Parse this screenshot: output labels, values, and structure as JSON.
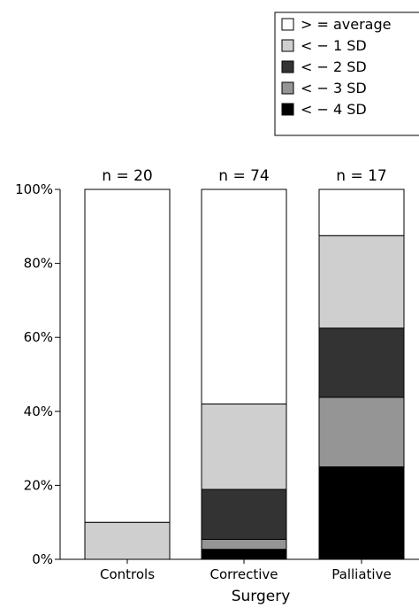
{
  "chart_data": {
    "type": "bar",
    "stacked": true,
    "percent": true,
    "categories": [
      "Controls",
      "Corrective",
      "Palliative"
    ],
    "counts": [
      "n = 20",
      "n = 74",
      "n = 17"
    ],
    "xlabel": "Surgery",
    "ylabel": "",
    "ylim": [
      0,
      100
    ],
    "yticks": [
      "0%",
      "20%",
      "40%",
      "60%",
      "80%",
      "100%"
    ],
    "series": [
      {
        "name": "< − 4 SD",
        "color": "#000000",
        "values": [
          0,
          2.7,
          25.0
        ]
      },
      {
        "name": "< − 3 SD",
        "color": "#959595",
        "values": [
          0,
          2.7,
          18.8
        ]
      },
      {
        "name": "< − 2 SD",
        "color": "#333333",
        "values": [
          0,
          13.5,
          18.7
        ]
      },
      {
        "name": "< − 1 SD",
        "color": "#cfcfcf",
        "values": [
          10.0,
          23.1,
          25.0
        ]
      },
      {
        "name": "> = average",
        "color": "#ffffff",
        "values": [
          90.0,
          58.0,
          12.5
        ]
      }
    ],
    "legend": {
      "position": "top-right",
      "order": [
        "> = average",
        "< − 1 SD",
        "< − 2 SD",
        "< − 3 SD",
        "< − 4 SD"
      ]
    },
    "grid": false
  }
}
